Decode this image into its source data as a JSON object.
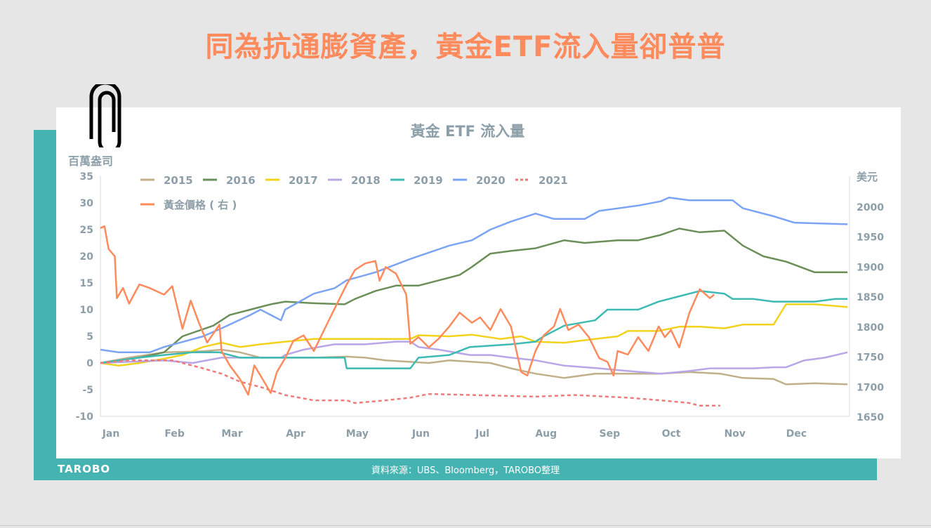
{
  "headline": "同為抗通膨資產，黃金ETF流入量卻普普",
  "footer": {
    "source": "資料來源：UBS、Bloomberg，TAROBO整理",
    "logo": "TAROBO"
  },
  "chart_data": {
    "type": "line",
    "title": "黃金 ETF 流入量",
    "ylabel": "百萬盎司",
    "y2label": "美元",
    "ylim": [
      -10,
      35
    ],
    "y2lim": [
      1650,
      2000
    ],
    "yticks": [
      -10,
      -5,
      0,
      5,
      10,
      15,
      20,
      25,
      30,
      35
    ],
    "y2ticks": [
      1650,
      1700,
      1750,
      1800,
      1850,
      1900,
      1950,
      2000
    ],
    "xticks": [
      "Jan",
      "Feb",
      "Mar",
      "Apr",
      "May",
      "Jun",
      "Jul",
      "Aug",
      "Sep",
      "Oct",
      "Nov",
      "Dec"
    ],
    "grid": false,
    "legend": "top-left",
    "series": [
      {
        "name": "2015",
        "color": "#c0b08a",
        "axis": "left",
        "dash": false,
        "points": [
          [
            "01-01",
            0
          ],
          [
            "01-15",
            1
          ],
          [
            "02-01",
            2
          ],
          [
            "02-20",
            2.2
          ],
          [
            "03-01",
            2.5
          ],
          [
            "03-10",
            2
          ],
          [
            "03-20",
            1
          ],
          [
            "04-15",
            1
          ],
          [
            "05-01",
            1.2
          ],
          [
            "05-10",
            1
          ],
          [
            "05-20",
            0.5
          ],
          [
            "06-10",
            0
          ],
          [
            "06-20",
            0.5
          ],
          [
            "07-10",
            0
          ],
          [
            "07-20",
            -1
          ],
          [
            "08-01",
            -2
          ],
          [
            "08-15",
            -2.8
          ],
          [
            "08-30",
            -2
          ],
          [
            "09-30",
            -2
          ],
          [
            "10-15",
            -1.7
          ],
          [
            "10-30",
            -2
          ],
          [
            "11-10",
            -2.8
          ],
          [
            "11-25",
            -3
          ],
          [
            "12-01",
            -4
          ],
          [
            "12-15",
            -3.8
          ],
          [
            "12-31",
            -4
          ]
        ]
      },
      {
        "name": "2016",
        "color": "#6a8f58",
        "axis": "left",
        "dash": false,
        "points": [
          [
            "01-01",
            0
          ],
          [
            "01-20",
            1
          ],
          [
            "02-01",
            2
          ],
          [
            "02-10",
            5
          ],
          [
            "02-25",
            7
          ],
          [
            "03-05",
            9
          ],
          [
            "03-15",
            10
          ],
          [
            "03-25",
            11
          ],
          [
            "04-01",
            11.5
          ],
          [
            "04-15",
            11.2
          ],
          [
            "04-30",
            11
          ],
          [
            "05-05",
            12
          ],
          [
            "05-15",
            13.5
          ],
          [
            "05-25",
            14.5
          ],
          [
            "06-05",
            14.5
          ],
          [
            "06-15",
            15.5
          ],
          [
            "06-25",
            16.5
          ],
          [
            "07-01",
            18
          ],
          [
            "07-10",
            20.5
          ],
          [
            "07-20",
            21
          ],
          [
            "08-01",
            21.5
          ],
          [
            "08-15",
            23
          ],
          [
            "08-25",
            22.5
          ],
          [
            "09-10",
            23
          ],
          [
            "09-20",
            23
          ],
          [
            "10-01",
            24
          ],
          [
            "10-10",
            25.2
          ],
          [
            "10-20",
            24.5
          ],
          [
            "11-01",
            24.8
          ],
          [
            "11-10",
            22
          ],
          [
            "11-20",
            20
          ],
          [
            "12-01",
            19
          ],
          [
            "12-15",
            17
          ],
          [
            "12-31",
            17
          ]
        ]
      },
      {
        "name": "2017",
        "color": "#f2d21b",
        "axis": "left",
        "dash": false,
        "points": [
          [
            "01-01",
            0
          ],
          [
            "01-10",
            -0.5
          ],
          [
            "01-20",
            0
          ],
          [
            "02-01",
            0.8
          ],
          [
            "02-10",
            1.5
          ],
          [
            "02-20",
            3
          ],
          [
            "03-01",
            3.8
          ],
          [
            "03-10",
            3
          ],
          [
            "03-20",
            3.5
          ],
          [
            "04-01",
            4
          ],
          [
            "04-15",
            4.5
          ],
          [
            "05-15",
            4.5
          ],
          [
            "06-01",
            4.5
          ],
          [
            "06-05",
            5.2
          ],
          [
            "06-20",
            5
          ],
          [
            "07-01",
            5.3
          ],
          [
            "07-15",
            4.5
          ],
          [
            "07-25",
            5
          ],
          [
            "08-01",
            4
          ],
          [
            "08-15",
            3.8
          ],
          [
            "08-30",
            4.5
          ],
          [
            "09-10",
            5
          ],
          [
            "09-15",
            6
          ],
          [
            "09-30",
            6
          ],
          [
            "10-10",
            6.8
          ],
          [
            "10-20",
            6.8
          ],
          [
            "11-01",
            6.5
          ],
          [
            "11-10",
            7.2
          ],
          [
            "11-25",
            7.2
          ],
          [
            "12-01",
            11
          ],
          [
            "12-15",
            11
          ],
          [
            "12-31",
            10.5
          ]
        ]
      },
      {
        "name": "2018",
        "color": "#b9a6e6",
        "axis": "left",
        "dash": false,
        "points": [
          [
            "01-01",
            0
          ],
          [
            "02-01",
            0.5
          ],
          [
            "02-15",
            0
          ],
          [
            "03-01",
            1
          ],
          [
            "03-30",
            1
          ],
          [
            "04-01",
            1.5
          ],
          [
            "04-10",
            2.5
          ],
          [
            "04-25",
            3.5
          ],
          [
            "05-10",
            3.5
          ],
          [
            "05-25",
            4
          ],
          [
            "06-01",
            4
          ],
          [
            "06-05",
            3
          ],
          [
            "06-15",
            2.5
          ],
          [
            "06-30",
            1.5
          ],
          [
            "07-10",
            1.5
          ],
          [
            "07-20",
            1
          ],
          [
            "08-01",
            0.5
          ],
          [
            "08-15",
            -0.5
          ],
          [
            "09-01",
            -1
          ],
          [
            "09-15",
            -1.5
          ],
          [
            "10-01",
            -2
          ],
          [
            "10-15",
            -1.5
          ],
          [
            "10-25",
            -1
          ],
          [
            "11-15",
            -1
          ],
          [
            "11-25",
            -0.8
          ],
          [
            "12-01",
            -0.8
          ],
          [
            "12-10",
            0.5
          ],
          [
            "12-20",
            1
          ],
          [
            "12-31",
            2
          ]
        ]
      },
      {
        "name": "2019",
        "color": "#3dbab3",
        "axis": "left",
        "dash": false,
        "points": [
          [
            "01-01",
            0
          ],
          [
            "01-20",
            1
          ],
          [
            "02-01",
            1.5
          ],
          [
            "02-15",
            2
          ],
          [
            "02-28",
            2
          ],
          [
            "03-10",
            1
          ],
          [
            "04-01",
            1
          ],
          [
            "04-30",
            1
          ],
          [
            "05-01",
            -1
          ],
          [
            "05-15",
            -1
          ],
          [
            "06-01",
            -1
          ],
          [
            "06-05",
            1
          ],
          [
            "06-20",
            1.5
          ],
          [
            "06-30",
            3
          ],
          [
            "07-20",
            3.5
          ],
          [
            "08-01",
            4
          ],
          [
            "08-05",
            5
          ],
          [
            "08-15",
            7
          ],
          [
            "08-30",
            8
          ],
          [
            "09-05",
            10
          ],
          [
            "09-20",
            10
          ],
          [
            "09-30",
            11.5
          ],
          [
            "10-10",
            12.5
          ],
          [
            "10-20",
            13.5
          ],
          [
            "11-01",
            13
          ],
          [
            "11-05",
            12
          ],
          [
            "11-15",
            12
          ],
          [
            "11-25",
            11.5
          ],
          [
            "12-15",
            11.5
          ],
          [
            "12-25",
            12
          ],
          [
            "12-31",
            12
          ]
        ]
      },
      {
        "name": "2020",
        "color": "#7ba4f5",
        "axis": "left",
        "dash": false,
        "points": [
          [
            "01-01",
            2.5
          ],
          [
            "01-10",
            2
          ],
          [
            "01-25",
            2
          ],
          [
            "02-01",
            3
          ],
          [
            "02-20",
            5
          ],
          [
            "03-01",
            6.5
          ],
          [
            "03-15",
            9
          ],
          [
            "03-20",
            10
          ],
          [
            "03-30",
            8
          ],
          [
            "04-01",
            10
          ],
          [
            "04-15",
            13
          ],
          [
            "04-25",
            14
          ],
          [
            "05-01",
            15.5
          ],
          [
            "05-15",
            17
          ],
          [
            "06-01",
            19.5
          ],
          [
            "06-20",
            22
          ],
          [
            "07-01",
            23
          ],
          [
            "07-10",
            25
          ],
          [
            "07-20",
            26.5
          ],
          [
            "08-01",
            28
          ],
          [
            "08-10",
            27
          ],
          [
            "08-25",
            27
          ],
          [
            "09-01",
            28.5
          ],
          [
            "09-20",
            29.5
          ],
          [
            "10-01",
            30.3
          ],
          [
            "10-05",
            31
          ],
          [
            "10-15",
            30.5
          ],
          [
            "11-05",
            30.5
          ],
          [
            "11-10",
            29
          ],
          [
            "11-25",
            27.5
          ],
          [
            "12-05",
            26.3
          ],
          [
            "12-31",
            26
          ]
        ]
      },
      {
        "name": "2021",
        "color": "#ee7b7b",
        "axis": "left",
        "dash": true,
        "points": [
          [
            "01-01",
            0
          ],
          [
            "01-15",
            0.5
          ],
          [
            "02-05",
            0.5
          ],
          [
            "02-10",
            0
          ],
          [
            "02-20",
            -1
          ],
          [
            "03-01",
            -2
          ],
          [
            "03-10",
            -3.5
          ],
          [
            "03-20",
            -4.5
          ],
          [
            "04-01",
            -6
          ],
          [
            "04-15",
            -7
          ],
          [
            "05-01",
            -7
          ],
          [
            "05-05",
            -7.5
          ],
          [
            "05-20",
            -7
          ],
          [
            "06-01",
            -6.5
          ],
          [
            "06-10",
            -5.8
          ],
          [
            "07-01",
            -6
          ],
          [
            "08-01",
            -6.3
          ],
          [
            "08-20",
            -6
          ],
          [
            "09-15",
            -6.5
          ],
          [
            "10-01",
            -7
          ],
          [
            "10-15",
            -7.5
          ],
          [
            "10-20",
            -8
          ],
          [
            "10-30",
            -8
          ]
        ]
      },
      {
        "name": "黃金價格(右)",
        "legend_label": "黃金價格 ( 右 )",
        "color": "#ff8a5c",
        "axis": "right",
        "dash": false,
        "points": [
          [
            "01-01",
            1964
          ],
          [
            "01-03",
            1967
          ],
          [
            "01-05",
            1929
          ],
          [
            "01-08",
            1917
          ],
          [
            "01-09",
            1847
          ],
          [
            "01-12",
            1864
          ],
          [
            "01-15",
            1838
          ],
          [
            "01-20",
            1870
          ],
          [
            "01-25",
            1864
          ],
          [
            "02-01",
            1853
          ],
          [
            "02-05",
            1867
          ],
          [
            "02-10",
            1796
          ],
          [
            "02-14",
            1843
          ],
          [
            "02-18",
            1806
          ],
          [
            "02-22",
            1773
          ],
          [
            "02-28",
            1803
          ],
          [
            "03-01",
            1759
          ],
          [
            "03-05",
            1735
          ],
          [
            "03-10",
            1712
          ],
          [
            "03-14",
            1686
          ],
          [
            "03-17",
            1735
          ],
          [
            "03-20",
            1718
          ],
          [
            "03-25",
            1689
          ],
          [
            "03-28",
            1724
          ],
          [
            "04-01",
            1747
          ],
          [
            "04-05",
            1776
          ],
          [
            "04-10",
            1785
          ],
          [
            "04-15",
            1759
          ],
          [
            "04-20",
            1794
          ],
          [
            "04-25",
            1829
          ],
          [
            "05-01",
            1870
          ],
          [
            "05-05",
            1894
          ],
          [
            "05-10",
            1905
          ],
          [
            "05-15",
            1909
          ],
          [
            "05-17",
            1876
          ],
          [
            "05-20",
            1899
          ],
          [
            "05-25",
            1888
          ],
          [
            "05-30",
            1853
          ],
          [
            "06-01",
            1771
          ],
          [
            "06-05",
            1782
          ],
          [
            "06-10",
            1765
          ],
          [
            "06-15",
            1780
          ],
          [
            "06-20",
            1800
          ],
          [
            "06-25",
            1823
          ],
          [
            "07-01",
            1806
          ],
          [
            "07-05",
            1815
          ],
          [
            "07-10",
            1794
          ],
          [
            "07-15",
            1829
          ],
          [
            "07-20",
            1800
          ],
          [
            "07-25",
            1724
          ],
          [
            "07-28",
            1718
          ],
          [
            "08-01",
            1759
          ],
          [
            "08-05",
            1785
          ],
          [
            "08-10",
            1800
          ],
          [
            "08-13",
            1829
          ],
          [
            "08-17",
            1794
          ],
          [
            "08-22",
            1803
          ],
          [
            "08-27",
            1782
          ],
          [
            "09-01",
            1747
          ],
          [
            "09-05",
            1741
          ],
          [
            "09-08",
            1718
          ],
          [
            "09-10",
            1759
          ],
          [
            "09-15",
            1753
          ],
          [
            "09-20",
            1782
          ],
          [
            "09-25",
            1759
          ],
          [
            "09-30",
            1800
          ],
          [
            "10-03",
            1782
          ],
          [
            "10-06",
            1794
          ],
          [
            "10-10",
            1765
          ],
          [
            "10-15",
            1823
          ],
          [
            "10-20",
            1862
          ],
          [
            "10-25",
            1847
          ],
          [
            "10-27",
            1853
          ]
        ]
      }
    ]
  }
}
